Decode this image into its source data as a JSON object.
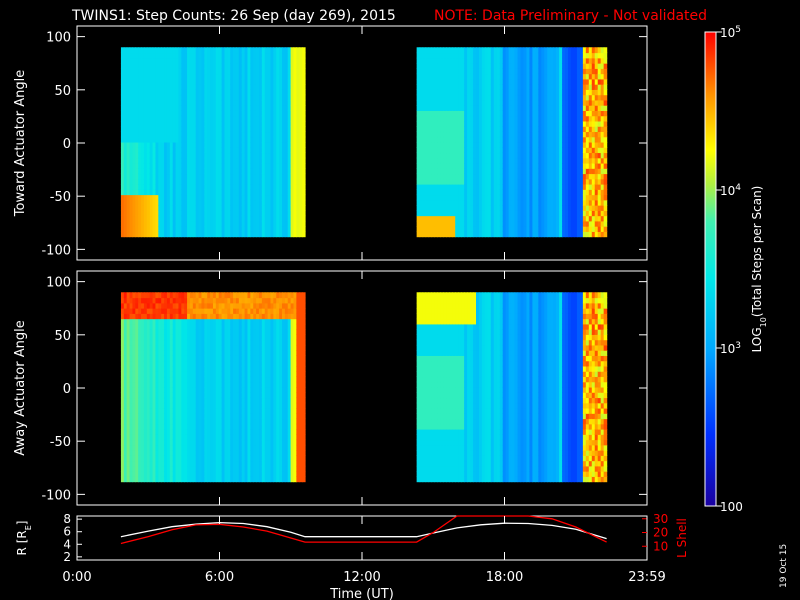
{
  "header": {
    "title": "TWINS1: Step Counts: 26 Sep (day 269), 2015",
    "note": "NOTE: Data Preliminary - Not validated"
  },
  "colors": {
    "background": "#000000",
    "axis": "#ffffff",
    "note": "#ff0000",
    "lshell": "#ff0000",
    "radius": "#ffffff"
  },
  "colorbar": {
    "label": "LOG10(Total Steps per Scan)",
    "label_main": "LOG",
    "label_sub": "10",
    "label_rest": "(Total Steps per Scan)",
    "ticks": [
      {
        "value": 100,
        "text": "100"
      },
      {
        "value": 1000,
        "text": "10",
        "sup": "3"
      },
      {
        "value": 10000,
        "text": "10",
        "sup": "4"
      },
      {
        "value": 100000,
        "text": "10",
        "sup": "5"
      }
    ],
    "scale": "log",
    "range": [
      100,
      100000
    ]
  },
  "x_axis": {
    "label": "Time (UT)",
    "ticks": [
      {
        "hours": 0,
        "label": "0:00"
      },
      {
        "hours": 6,
        "label": "6:00"
      },
      {
        "hours": 12,
        "label": "12:00"
      },
      {
        "hours": 18,
        "label": "18:00"
      },
      {
        "hours": 24,
        "label": "23:59"
      }
    ],
    "range_hours": [
      0,
      24
    ]
  },
  "footer": {
    "date_stamp": "19 Oct 15"
  },
  "chart_data": [
    {
      "type": "heatmap",
      "name": "toward",
      "ylabel": "Toward Actuator Angle",
      "ylim": [
        -110,
        110
      ],
      "yticks": [
        100,
        50,
        0,
        -50,
        -100
      ],
      "xlabel": "",
      "intervals_hours": [
        [
          1.85,
          9.6
        ],
        [
          14.3,
          22.3
        ]
      ],
      "angle_range": [
        -88,
        90
      ]
    },
    {
      "type": "heatmap",
      "name": "away",
      "ylabel": "Away Actuator Angle",
      "ylim": [
        -110,
        110
      ],
      "yticks": [
        100,
        50,
        0,
        -50,
        -100
      ],
      "xlabel": "",
      "intervals_hours": [
        [
          1.85,
          9.6
        ],
        [
          14.3,
          22.3
        ]
      ],
      "angle_range": [
        -88,
        90
      ]
    },
    {
      "type": "line",
      "name": "orbit",
      "ylabel_left": "R [RE]",
      "ylabel_left_main": "R [R",
      "ylabel_left_sub": "E",
      "ylabel_left_end": "]",
      "ylabel_right": "L Shell",
      "yticks_left": [
        2,
        4,
        6,
        8
      ],
      "yticks_right": [
        10,
        20,
        30
      ],
      "ylim_left": [
        1.5,
        8.5
      ],
      "ylim_right": [
        0,
        32
      ],
      "series": [
        {
          "name": "R",
          "axis": "left",
          "color": "#ffffff",
          "x": [
            1.85,
            3,
            4,
            5,
            6,
            7,
            8,
            9,
            9.6,
            14.3,
            15,
            16,
            17,
            18,
            19,
            20,
            21,
            22.3
          ],
          "y": [
            5.2,
            6.1,
            6.8,
            7.2,
            7.45,
            7.3,
            6.8,
            5.9,
            5.2,
            5.2,
            5.8,
            6.6,
            7.1,
            7.35,
            7.3,
            7.0,
            6.4,
            4.9
          ]
        },
        {
          "name": "L",
          "axis": "right",
          "color": "#ff0000",
          "x": [
            1.85,
            3,
            4,
            5,
            6,
            7,
            8,
            9,
            9.6,
            14.3,
            15,
            16,
            17,
            18,
            19,
            20,
            21,
            22.3
          ],
          "y": [
            12,
            17,
            22,
            25.5,
            26,
            24,
            21,
            16,
            13,
            13,
            20,
            32,
            32,
            32,
            32,
            30,
            24,
            13
          ]
        }
      ]
    }
  ]
}
